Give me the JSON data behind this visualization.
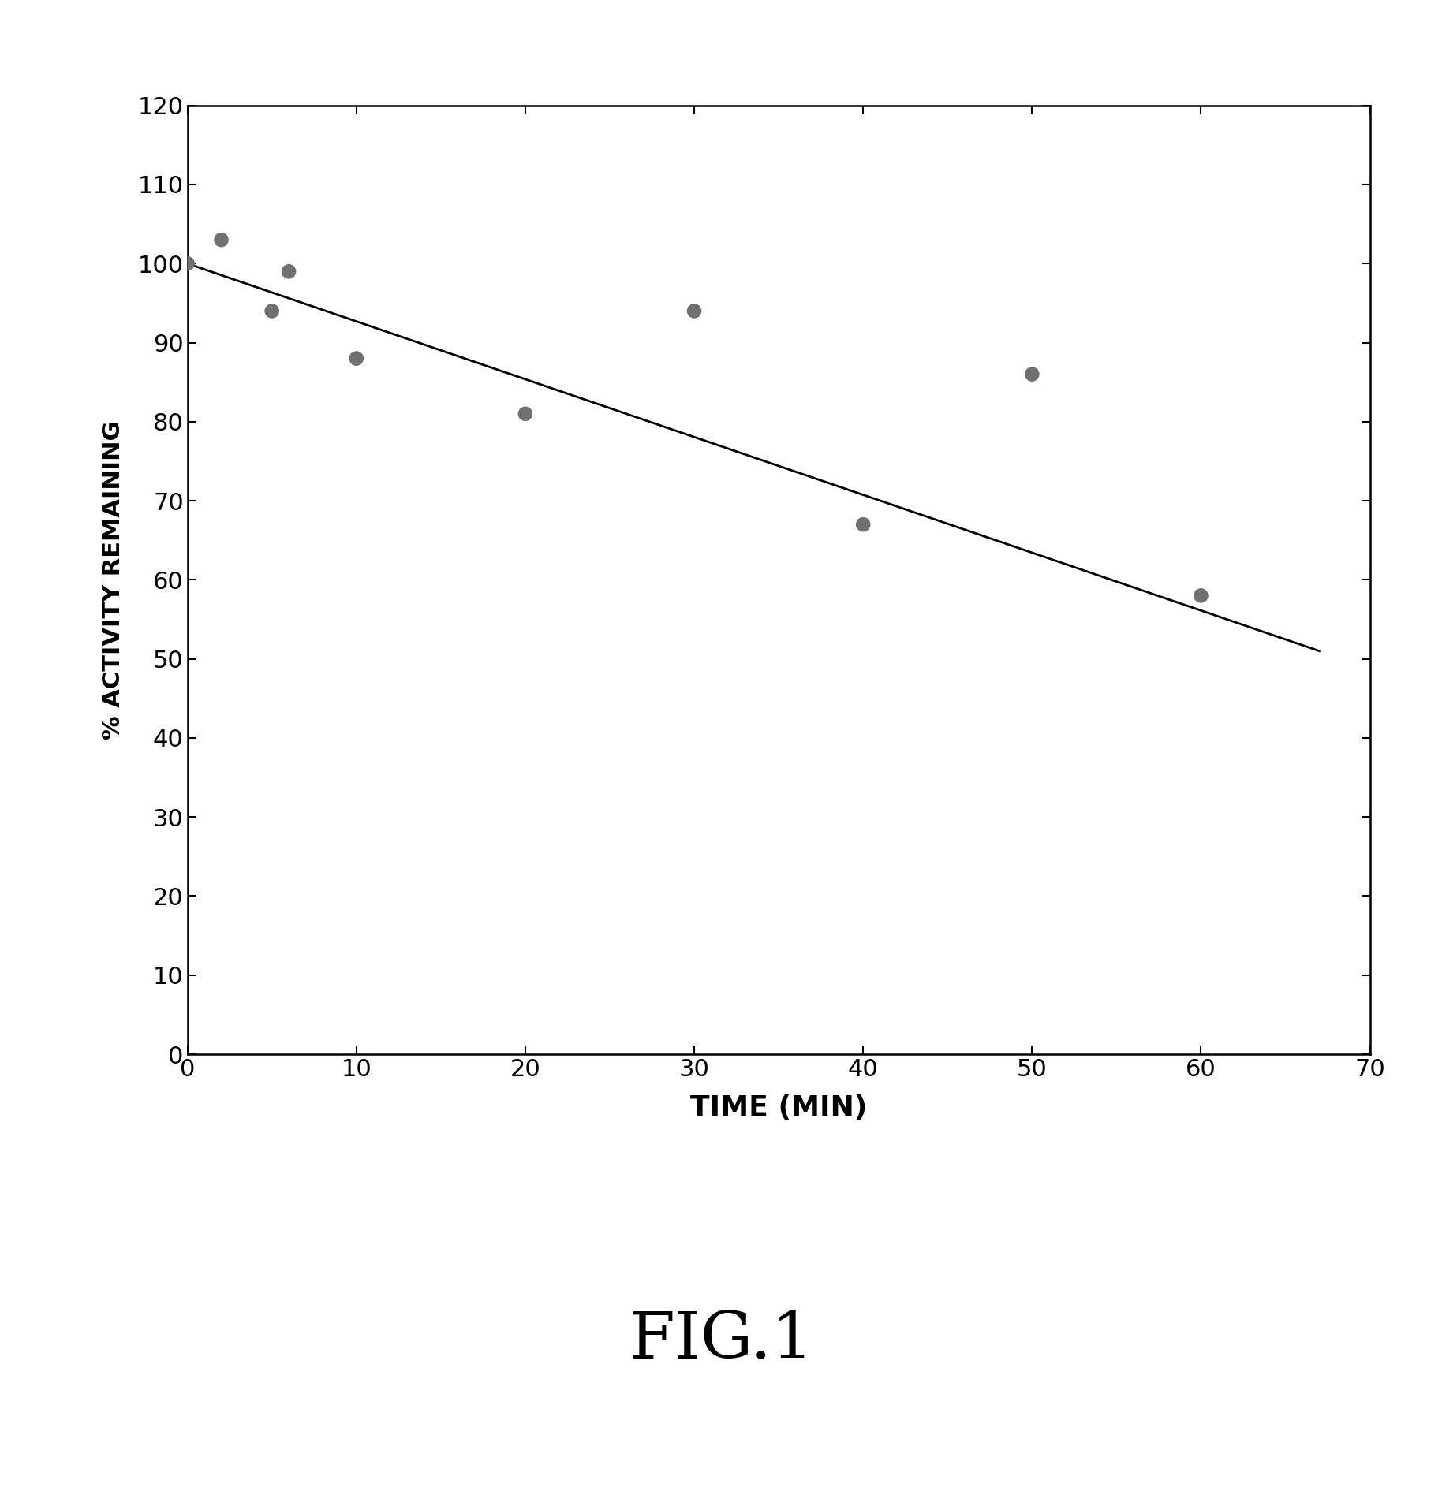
{
  "scatter_x": [
    0,
    2,
    5,
    6,
    10,
    20,
    30,
    40,
    50,
    60
  ],
  "scatter_y": [
    100,
    103,
    94,
    99,
    88,
    81,
    94,
    67,
    86,
    58
  ],
  "line_x": [
    0,
    67
  ],
  "line_y": [
    100,
    51
  ],
  "scatter_color": "#707070",
  "line_color": "#000000",
  "xlabel": "TIME (MIN)",
  "ylabel": "% ACTIVITY REMAINING",
  "title": "FIG.1",
  "xlim": [
    0,
    70
  ],
  "ylim": [
    0,
    120
  ],
  "xticks": [
    0,
    10,
    20,
    30,
    40,
    50,
    60,
    70
  ],
  "yticks": [
    0,
    10,
    20,
    30,
    40,
    50,
    60,
    70,
    80,
    90,
    100,
    110,
    120
  ],
  "scatter_size": 180,
  "line_width": 2.0,
  "xlabel_fontsize": 26,
  "ylabel_fontsize": 22,
  "tick_fontsize": 22,
  "title_fontsize": 60,
  "background_color": "#ffffff"
}
